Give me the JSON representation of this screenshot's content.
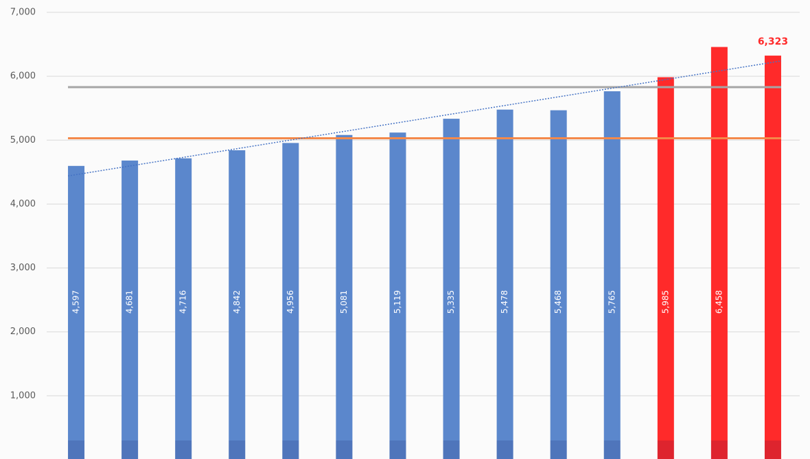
{
  "chart_data": {
    "type": "bar",
    "categories": [
      null,
      null,
      null,
      null,
      null,
      null,
      null,
      null,
      null,
      null,
      null,
      null,
      null,
      null
    ],
    "values": [
      4597,
      4681,
      4716,
      4842,
      4956,
      5081,
      5119,
      5335,
      5478,
      5468,
      5765,
      5985,
      6458,
      6323
    ],
    "value_labels": [
      "4,597",
      "4,681",
      "4,716",
      "4,842",
      "4,956",
      "5,081",
      "5,119",
      "5,335",
      "5,478",
      "5,468",
      "5,765",
      "5,985",
      "6,458",
      "6,323"
    ],
    "colors": [
      "#5b87cc",
      "#5b87cc",
      "#5b87cc",
      "#5b87cc",
      "#5b87cc",
      "#5b87cc",
      "#5b87cc",
      "#5b87cc",
      "#5b87cc",
      "#5b87cc",
      "#5b87cc",
      "#ff2a2a",
      "#ff2a2a",
      "#ff2a2a"
    ],
    "label_positions": [
      "inside",
      "inside",
      "inside",
      "inside",
      "inside",
      "inside",
      "inside",
      "inside",
      "inside",
      "inside",
      "inside",
      "inside",
      "inside",
      "top"
    ],
    "ylim": [
      0,
      7000
    ],
    "yticks": [
      {
        "value": 1000,
        "label": "1,000"
      },
      {
        "value": 2000,
        "label": "2,000"
      },
      {
        "value": 3000,
        "label": "3,000"
      },
      {
        "value": 4000,
        "label": "4,000"
      },
      {
        "value": 5000,
        "label": "5,000"
      },
      {
        "value": 6000,
        "label": "6,000"
      },
      {
        "value": 7000,
        "label": "7,000"
      }
    ],
    "grid": true,
    "reference_lines": [
      {
        "value": 5830,
        "color": "#a6a6a6"
      },
      {
        "value": 5030,
        "color": "#f4894a"
      }
    ],
    "trendline": {
      "start": 4440,
      "end": 6240,
      "color": "#4472c4"
    }
  }
}
